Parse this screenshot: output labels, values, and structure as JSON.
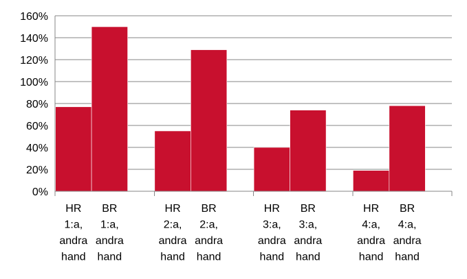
{
  "chart_data": {
    "type": "bar",
    "y_unit": "%",
    "ylim": [
      0,
      160
    ],
    "yticks": [
      0,
      20,
      40,
      60,
      80,
      100,
      120,
      140,
      160
    ],
    "ytick_labels": [
      "0%",
      "20%",
      "40%",
      "60%",
      "80%",
      "100%",
      "120%",
      "140%",
      "160%"
    ],
    "grid": true,
    "legend": "none",
    "bar_color": "#C8102E",
    "categories": [
      [
        "HR",
        "1:a,",
        "andra",
        "hand"
      ],
      [
        "BR",
        "1:a,",
        "andra",
        "hand"
      ],
      [
        "HR",
        "2:a,",
        "andra",
        "hand"
      ],
      [
        "BR",
        "2:a,",
        "andra",
        "hand"
      ],
      [
        "HR",
        "3:a,",
        "andra",
        "hand"
      ],
      [
        "BR",
        "3:a,",
        "andra",
        "hand"
      ],
      [
        "HR",
        "4:a,",
        "andra",
        "hand"
      ],
      [
        "BR",
        "4:a,",
        "andra",
        "hand"
      ]
    ],
    "groups": [
      {
        "members": [
          0,
          1
        ]
      },
      {
        "members": [
          2,
          3
        ]
      },
      {
        "members": [
          4,
          5
        ]
      },
      {
        "members": [
          6,
          7
        ]
      }
    ],
    "values": [
      77,
      150,
      55,
      129,
      40,
      74,
      19,
      78
    ]
  }
}
